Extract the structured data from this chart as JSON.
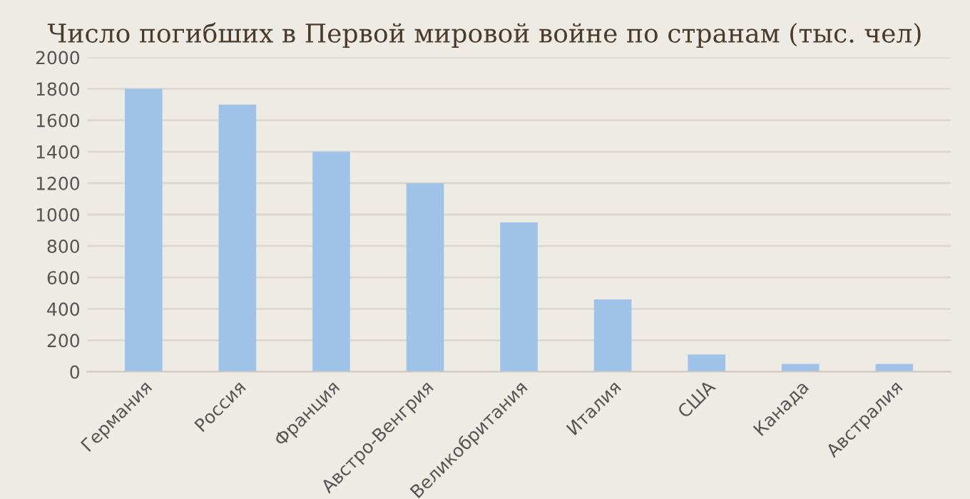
{
  "chart_data": {
    "type": "bar",
    "title": "Число погибших в Первой мировой войне по странам (тыс. чел)",
    "categories": [
      "Германия",
      "Россия",
      "Франция",
      "Австро-Венгрия",
      "Великобритания",
      "Италия",
      "США",
      "Канада",
      "Австралия"
    ],
    "values": [
      1800,
      1700,
      1400,
      1200,
      950,
      460,
      110,
      50,
      50
    ],
    "color": "#9fc2e8",
    "ylim": [
      0,
      2000
    ],
    "yticks": [
      0,
      200,
      400,
      600,
      800,
      1000,
      1200,
      1400,
      1600,
      1800,
      2000
    ],
    "grid": "y"
  }
}
